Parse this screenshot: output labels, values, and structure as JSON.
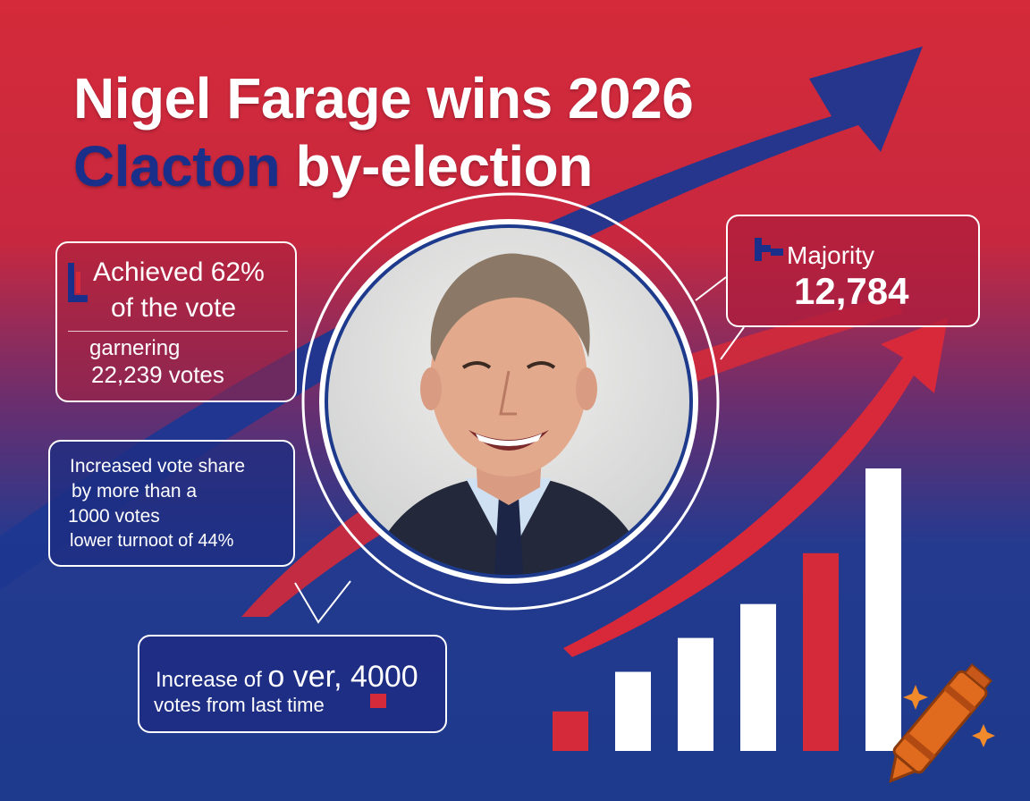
{
  "headline": {
    "line1": "Nigel Farage wins 2026",
    "line2_highlight": "Clacton",
    "line2_rest": " by-election"
  },
  "vote_box": {
    "line1": "Achieved 62%",
    "line2": "of the vote",
    "line3": "garnering",
    "line4": "22,239 votes"
  },
  "share_box": {
    "line1": "Increased vote share",
    "line2": "by more than a",
    "line3": "1000 votes",
    "line4": "lower turnoot of 44%"
  },
  "majority_box": {
    "label": "Majority",
    "value": "12,784"
  },
  "increase_box": {
    "line1_a": "Increase of ",
    "line1_b": "o  ver, 4000",
    "line2": "votes from last time"
  },
  "bar_levels": [
    0.14,
    0.28,
    0.4,
    0.52,
    0.7,
    1.0
  ],
  "colors": {
    "red": "#d42a3a",
    "blue": "#1d3a8c",
    "white": "#ffffff",
    "crayon": "#e06a1e"
  },
  "icons": [
    "trend-arrow-icon",
    "crayon-icon",
    "sparkle-icon",
    "portrait-photo"
  ]
}
